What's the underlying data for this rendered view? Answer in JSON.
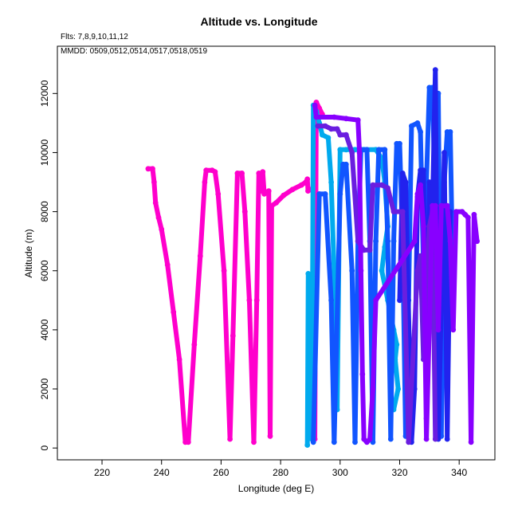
{
  "chart_data": {
    "type": "line",
    "title": "Altitude vs. Longitude",
    "annotations": [
      "Flts: 7,8,9,10,11,12",
      "MMDD: 0509,0512,0514,0517,0518,0519"
    ],
    "xlabel": "Longitude (deg E)",
    "ylabel": "Altitude (m)",
    "xlim": [
      205,
      352
    ],
    "ylim": [
      -400,
      13600
    ],
    "xticks": [
      220,
      240,
      260,
      280,
      300,
      320,
      340
    ],
    "yticks": [
      0,
      2000,
      4000,
      6000,
      8000,
      10000,
      12000
    ],
    "grid": false,
    "legend": "none",
    "series": [
      {
        "color": "#FF00CC",
        "points": [
          [
            235.5,
            9450
          ],
          [
            237,
            9450
          ],
          [
            237.5,
            9000
          ],
          [
            238,
            8300
          ],
          [
            239,
            7800
          ],
          [
            240,
            7400
          ],
          [
            242,
            6200
          ],
          [
            244,
            4600
          ],
          [
            246,
            3000
          ],
          [
            248,
            200
          ],
          [
            249,
            200
          ],
          [
            251,
            3500
          ],
          [
            253,
            6500
          ],
          [
            254.5,
            9000
          ],
          [
            255,
            9400
          ],
          [
            257,
            9400
          ],
          [
            258,
            9350
          ],
          [
            259,
            8600
          ],
          [
            261,
            6000
          ],
          [
            263,
            300
          ],
          [
            264,
            3800
          ],
          [
            265.5,
            9300
          ],
          [
            267,
            9300
          ],
          [
            268,
            8000
          ],
          [
            269.5,
            5000
          ],
          [
            271,
            200
          ],
          [
            272,
            5000
          ],
          [
            272.7,
            9300
          ],
          [
            273.4,
            8700
          ],
          [
            274,
            9350
          ],
          [
            274.5,
            8600
          ],
          [
            276,
            8700
          ],
          [
            276.5,
            400
          ],
          [
            277,
            8200
          ],
          [
            278.5,
            8300
          ],
          [
            281,
            8550
          ],
          [
            284,
            8750
          ],
          [
            287,
            8900
          ],
          [
            288.5,
            9000
          ],
          [
            289,
            9100
          ],
          [
            289.2,
            8700
          ],
          [
            291,
            8800
          ],
          [
            291.5,
            300
          ],
          [
            292,
            11700
          ],
          [
            293,
            11500
          ],
          [
            294,
            11300
          ]
        ]
      },
      {
        "color": "#00AAEE",
        "points": [
          [
            289,
            100
          ],
          [
            289.3,
            5900
          ],
          [
            290,
            4800
          ],
          [
            290.5,
            300
          ],
          [
            291,
            11600
          ],
          [
            292,
            11400
          ],
          [
            293,
            11000
          ],
          [
            294,
            10600
          ],
          [
            296,
            10500
          ],
          [
            297,
            9000
          ],
          [
            298,
            6000
          ],
          [
            299,
            1300
          ],
          [
            300,
            10100
          ],
          [
            302,
            10100
          ],
          [
            305,
            10100
          ],
          [
            308,
            10100
          ],
          [
            312,
            10100
          ],
          [
            314,
            9800
          ],
          [
            315,
            9000
          ],
          [
            316,
            7500
          ],
          [
            315,
            6800
          ],
          [
            314,
            6000
          ],
          [
            316,
            5000
          ],
          [
            318,
            4000
          ],
          [
            319,
            3500
          ],
          [
            318.5,
            3000
          ],
          [
            319.5,
            2000
          ],
          [
            318,
            1300
          ]
        ]
      },
      {
        "color": "#1155FF",
        "points": [
          [
            291,
            200
          ],
          [
            293,
            8600
          ],
          [
            295,
            8600
          ],
          [
            297,
            5000
          ],
          [
            298,
            200
          ],
          [
            300,
            8600
          ],
          [
            301,
            9600
          ],
          [
            302,
            9600
          ],
          [
            304,
            6000
          ],
          [
            305,
            200
          ],
          [
            306,
            7000
          ],
          [
            307,
            10100
          ],
          [
            309,
            10100
          ],
          [
            310,
            7000
          ],
          [
            311,
            200
          ],
          [
            312,
            7000
          ],
          [
            313,
            10100
          ],
          [
            315,
            10100
          ],
          [
            316,
            7000
          ],
          [
            317,
            300
          ],
          [
            318,
            7000
          ],
          [
            319,
            10300
          ],
          [
            320,
            10300
          ],
          [
            321,
            7000
          ],
          [
            322,
            400
          ],
          [
            323,
            5000
          ],
          [
            324,
            10900
          ],
          [
            326,
            11000
          ],
          [
            327,
            10700
          ],
          [
            328,
            6000
          ],
          [
            329,
            9000
          ],
          [
            330,
            12200
          ],
          [
            331,
            12200
          ],
          [
            332,
            8000
          ],
          [
            333,
            12000
          ],
          [
            334,
            400
          ],
          [
            335,
            9000
          ],
          [
            336,
            10700
          ],
          [
            337,
            10700
          ],
          [
            338,
            5000
          ]
        ]
      },
      {
        "color": "#2222EE",
        "points": [
          [
            320,
            5000
          ],
          [
            321,
            9300
          ],
          [
            322,
            9000
          ],
          [
            324,
            200
          ],
          [
            325,
            2000
          ],
          [
            326,
            8500
          ],
          [
            327,
            9400
          ],
          [
            328,
            9400
          ],
          [
            329,
            1000
          ],
          [
            330,
            9000
          ],
          [
            331,
            8000
          ],
          [
            332,
            12800
          ],
          [
            333,
            300
          ],
          [
            334,
            5000
          ],
          [
            335,
            10000
          ],
          [
            336,
            300
          ],
          [
            337,
            8000
          ]
        ]
      },
      {
        "color": "#6A1EE0",
        "points": [
          [
            292.5,
            10900
          ],
          [
            295,
            10900
          ],
          [
            297,
            10800
          ],
          [
            299,
            10800
          ],
          [
            300,
            10600
          ],
          [
            302,
            10600
          ],
          [
            304,
            10000
          ],
          [
            306,
            7000
          ],
          [
            308,
            6700
          ],
          [
            310,
            6700
          ],
          [
            311,
            8900
          ],
          [
            314,
            8900
          ],
          [
            316,
            8800
          ],
          [
            318,
            8000
          ],
          [
            321,
            8000
          ],
          [
            323,
            200
          ],
          [
            326,
            6000
          ],
          [
            327,
            6500
          ],
          [
            328,
            3000
          ],
          [
            330,
            7500
          ],
          [
            331,
            8000
          ],
          [
            332,
            300
          ]
        ]
      },
      {
        "color": "#8800FF",
        "points": [
          [
            291.5,
            11600
          ],
          [
            292,
            11200
          ],
          [
            298,
            11200
          ],
          [
            302,
            11150
          ],
          [
            306,
            11100
          ],
          [
            306.5,
            10000
          ],
          [
            307,
            6000
          ],
          [
            307.5,
            2500
          ],
          [
            308,
            300
          ],
          [
            309,
            200
          ],
          [
            310,
            300
          ],
          [
            311,
            2000
          ],
          [
            312,
            5000
          ],
          [
            325,
            7000
          ],
          [
            326,
            8600
          ],
          [
            327,
            8900
          ],
          [
            328,
            7500
          ],
          [
            329,
            300
          ],
          [
            331,
            8200
          ],
          [
            332,
            8200
          ],
          [
            333,
            4000
          ],
          [
            334,
            8200
          ],
          [
            336,
            8200
          ],
          [
            337,
            7000
          ],
          [
            338,
            4000
          ],
          [
            339,
            8000
          ],
          [
            341,
            8000
          ],
          [
            342,
            7900
          ],
          [
            343,
            7800
          ],
          [
            344,
            200
          ],
          [
            345,
            7900
          ],
          [
            346,
            7000
          ]
        ]
      }
    ]
  }
}
